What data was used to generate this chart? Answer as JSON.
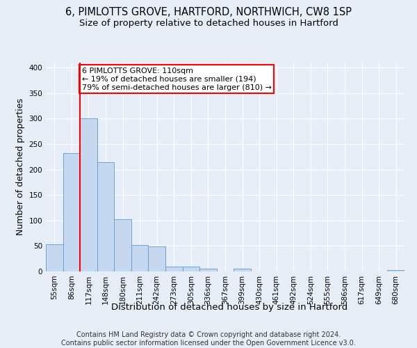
{
  "title_line1": "6, PIMLOTTS GROVE, HARTFORD, NORTHWICH, CW8 1SP",
  "title_line2": "Size of property relative to detached houses in Hartford",
  "xlabel": "Distribution of detached houses by size in Hartford",
  "ylabel": "Number of detached properties",
  "bin_labels": [
    "55sqm",
    "86sqm",
    "117sqm",
    "148sqm",
    "180sqm",
    "211sqm",
    "242sqm",
    "273sqm",
    "305sqm",
    "336sqm",
    "367sqm",
    "399sqm",
    "430sqm",
    "461sqm",
    "492sqm",
    "524sqm",
    "555sqm",
    "586sqm",
    "617sqm",
    "649sqm",
    "680sqm"
  ],
  "bar_values": [
    53,
    232,
    300,
    215,
    103,
    52,
    49,
    10,
    9,
    6,
    0,
    5,
    0,
    0,
    0,
    0,
    0,
    0,
    0,
    0,
    3
  ],
  "bar_color": "#c5d8f0",
  "bar_edge_color": "#5b9bd5",
  "vline_x": 1.5,
  "vline_color": "red",
  "annotation_text": "6 PIMLOTTS GROVE: 110sqm\n← 19% of detached houses are smaller (194)\n79% of semi-detached houses are larger (810) →",
  "annotation_box_color": "white",
  "annotation_box_edge": "red",
  "ylim": [
    0,
    410
  ],
  "yticks": [
    0,
    50,
    100,
    150,
    200,
    250,
    300,
    350,
    400
  ],
  "footnote": "Contains HM Land Registry data © Crown copyright and database right 2024.\nContains public sector information licensed under the Open Government Licence v3.0.",
  "bg_color": "#e8eef8",
  "grid_color": "white",
  "title_fontsize": 10.5,
  "subtitle_fontsize": 9.5,
  "axis_label_fontsize": 9,
  "tick_fontsize": 7.5,
  "footnote_fontsize": 7,
  "ann_fontsize": 8
}
